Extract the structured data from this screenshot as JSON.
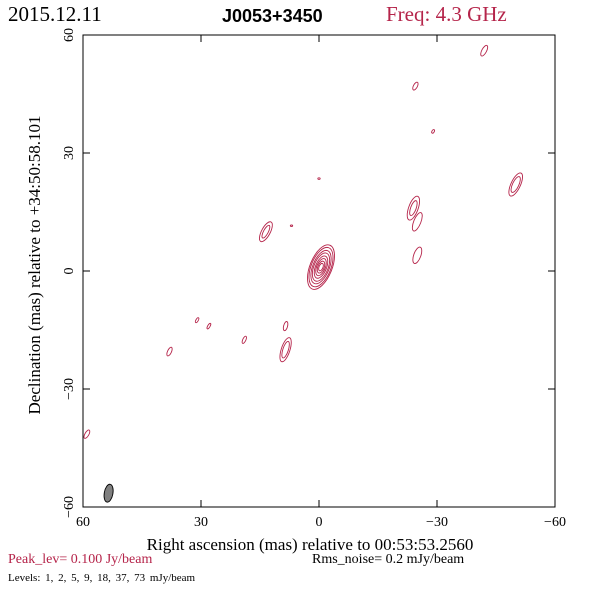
{
  "header": {
    "date": "2015.12.11",
    "source": "J0053+3450",
    "freq": "Freq: 4.3 GHz"
  },
  "footer": {
    "peak": "Peak_lev=  0.100 Jy/beam",
    "rms": "Rms_noise=  0.2 mJy/beam",
    "levels": "Levels:  1,  2,  5,  9,  18,  37,  73 mJy/beam"
  },
  "colors": {
    "contour": "#b5244a",
    "axes": "#000000",
    "beam": "#808080"
  },
  "chart_data": {
    "type": "contour",
    "xlabel": "Right ascension (mas) relative to 00:53:53.2560",
    "ylabel": "Declination (mas) relative to +34:50:58.101",
    "xlim": [
      60,
      -60
    ],
    "ylim": [
      -60,
      60
    ],
    "x_ticks": [
      60,
      30,
      0,
      -30,
      -60
    ],
    "y_ticks": [
      -60,
      -30,
      0,
      30,
      60
    ],
    "x_tick_labels": [
      "60",
      "30",
      "0",
      "−30",
      "−60"
    ],
    "y_tick_labels": [
      "−60",
      "−30",
      "0",
      "30",
      "60"
    ],
    "levels_mJy": [
      1,
      2,
      5,
      9,
      18,
      37,
      73
    ],
    "peak_Jy_per_beam": 0.1,
    "rms_mJy_per_beam": 0.2,
    "core": {
      "x": -0.5,
      "y": 1,
      "rings": [
        {
          "a": 1.0,
          "b": 0.5
        },
        {
          "a": 1.6,
          "b": 0.8
        },
        {
          "a": 2.3,
          "b": 1.1
        },
        {
          "a": 3.0,
          "b": 1.4
        },
        {
          "a": 3.8,
          "b": 1.8
        },
        {
          "a": 4.5,
          "b": 2.1
        },
        {
          "a": 5.3,
          "b": 2.5
        },
        {
          "a": 6.0,
          "b": 2.8
        }
      ],
      "angle": 68
    },
    "components": [
      {
        "x": 38,
        "y": -20.5,
        "a": 1.2,
        "b": 0.5,
        "angle": 65
      },
      {
        "x": 31,
        "y": -12.5,
        "a": 0.7,
        "b": 0.3,
        "angle": 60
      },
      {
        "x": 28,
        "y": -14,
        "a": 0.8,
        "b": 0.3,
        "angle": 60
      },
      {
        "x": 19,
        "y": -17.5,
        "a": 1.0,
        "b": 0.4,
        "angle": 65
      },
      {
        "x": 8.5,
        "y": -14,
        "a": 1.2,
        "b": 0.5,
        "angle": 75
      },
      {
        "x": 8.5,
        "y": -20,
        "a": 3.2,
        "b": 1.1,
        "angle": 72
      },
      {
        "x": 8.5,
        "y": -20,
        "a": 2.2,
        "b": 0.7,
        "angle": 72
      },
      {
        "x": 13.5,
        "y": 10,
        "a": 2.8,
        "b": 1.1,
        "angle": 62
      },
      {
        "x": 13.5,
        "y": 10,
        "a": 1.8,
        "b": 0.6,
        "angle": 62
      },
      {
        "x": 7,
        "y": 11.5,
        "a": 0.3,
        "b": 0.2,
        "angle": 0
      },
      {
        "x": 0,
        "y": 23.5,
        "a": 0.3,
        "b": 0.2,
        "angle": 0
      },
      {
        "x": -24,
        "y": 16,
        "a": 3.2,
        "b": 1.2,
        "angle": 70
      },
      {
        "x": -24,
        "y": 16,
        "a": 2.0,
        "b": 0.7,
        "angle": 70
      },
      {
        "x": -25,
        "y": 12.5,
        "a": 2.5,
        "b": 0.9,
        "angle": 68
      },
      {
        "x": -25,
        "y": 4,
        "a": 2.2,
        "b": 0.9,
        "angle": 70
      },
      {
        "x": -24.5,
        "y": 47,
        "a": 1.1,
        "b": 0.5,
        "angle": 62
      },
      {
        "x": -29,
        "y": 35.5,
        "a": 0.5,
        "b": 0.3,
        "angle": 60
      },
      {
        "x": -42,
        "y": 56,
        "a": 1.5,
        "b": 0.6,
        "angle": 62
      },
      {
        "x": -50,
        "y": 22,
        "a": 3.2,
        "b": 1.2,
        "angle": 65
      },
      {
        "x": -50,
        "y": 22,
        "a": 2.2,
        "b": 0.8,
        "angle": 65
      },
      {
        "x": 59,
        "y": -41.5,
        "a": 1.2,
        "b": 0.5,
        "angle": 60
      }
    ],
    "beam": {
      "x": 53.5,
      "y": -56.5,
      "a": 2.3,
      "b": 1.1,
      "angle": 80
    }
  }
}
